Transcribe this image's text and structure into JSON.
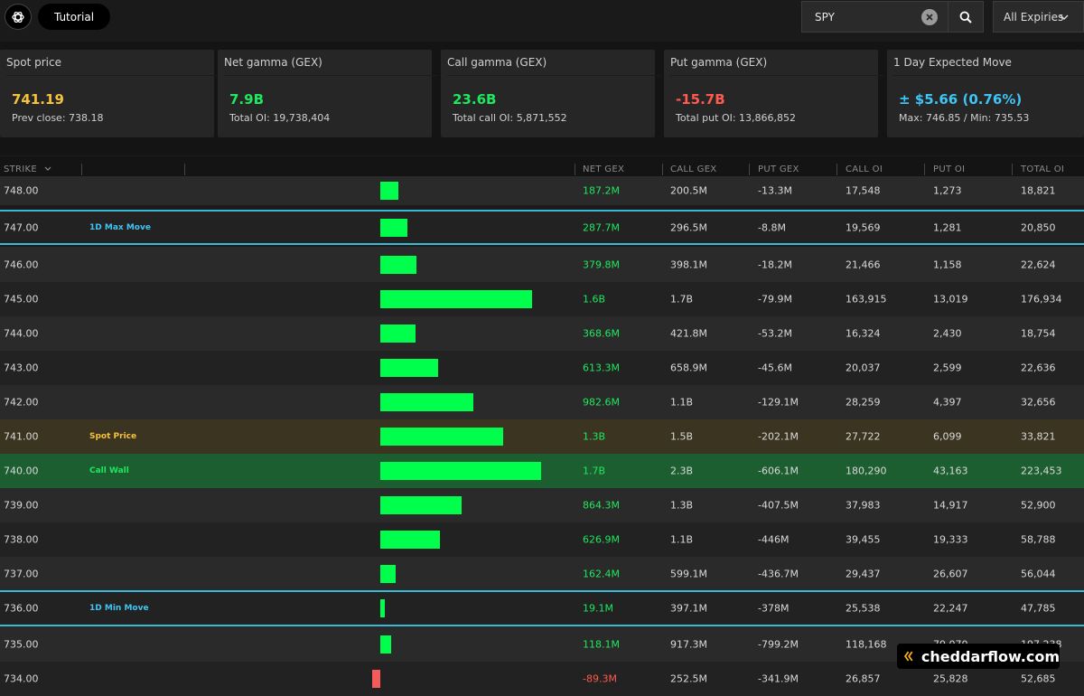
{
  "header": {
    "tutorial_label": "Tutorial",
    "search_value": "SPY",
    "expiry_label": "All Expiries"
  },
  "cards": [
    {
      "label": "Spot price",
      "value": "741.19",
      "sub": "Prev close: 738.18",
      "color": "#f5c23a"
    },
    {
      "label": "Net gamma (GEX)",
      "value": "7.9B",
      "sub": "Total OI: 19,738,404",
      "color": "#1ee85e"
    },
    {
      "label": "Call gamma (GEX)",
      "value": "23.6B",
      "sub": "Total call OI: 5,871,552",
      "color": "#1ee85e"
    },
    {
      "label": "Put gamma (GEX)",
      "value": "-15.7B",
      "sub": "Total put OI: 13,866,852",
      "color": "#ff5a4e"
    },
    {
      "label": "1 Day Expected Move",
      "value": "± $5.66 (0.76%)",
      "sub": "Max: 746.85 / Min: 735.53",
      "color": "#3fc4f5"
    }
  ],
  "table": {
    "headers": {
      "strike": "STRIKE",
      "net_gex": "NET GEX",
      "call_gex": "CALL GEX",
      "put_gex": "PUT GEX",
      "call_oi": "CALL OI",
      "put_oi": "PUT OI",
      "total_oi": "TOTAL OI"
    },
    "rows": [
      {
        "strike": "748.00",
        "tag": "",
        "net": "187.2M",
        "net_value": 187.2,
        "call_gex": "200.5M",
        "put_gex": "-13.3M",
        "call_oi": "17,548",
        "put_oi": "1,273",
        "total_oi": "18,821"
      },
      {
        "strike": "747.00",
        "tag": "1D Max Move",
        "net": "287.7M",
        "net_value": 287.7,
        "call_gex": "296.5M",
        "put_gex": "-8.8M",
        "call_oi": "19,569",
        "put_oi": "1,281",
        "total_oi": "20,850"
      },
      {
        "strike": "746.00",
        "tag": "",
        "net": "379.8M",
        "net_value": 379.8,
        "call_gex": "398.1M",
        "put_gex": "-18.2M",
        "call_oi": "21,466",
        "put_oi": "1,158",
        "total_oi": "22,624"
      },
      {
        "strike": "745.00",
        "tag": "",
        "net": "1.6B",
        "net_value": 1600,
        "call_gex": "1.7B",
        "put_gex": "-79.9M",
        "call_oi": "163,915",
        "put_oi": "13,019",
        "total_oi": "176,934"
      },
      {
        "strike": "744.00",
        "tag": "",
        "net": "368.6M",
        "net_value": 368.6,
        "call_gex": "421.8M",
        "put_gex": "-53.2M",
        "call_oi": "16,324",
        "put_oi": "2,430",
        "total_oi": "18,754"
      },
      {
        "strike": "743.00",
        "tag": "",
        "net": "613.3M",
        "net_value": 613.3,
        "call_gex": "658.9M",
        "put_gex": "-45.6M",
        "call_oi": "20,037",
        "put_oi": "2,599",
        "total_oi": "22,636"
      },
      {
        "strike": "742.00",
        "tag": "",
        "net": "982.6M",
        "net_value": 982.6,
        "call_gex": "1.1B",
        "put_gex": "-129.1M",
        "call_oi": "28,259",
        "put_oi": "4,397",
        "total_oi": "32,656"
      },
      {
        "strike": "741.00",
        "tag": "Spot Price",
        "net": "1.3B",
        "net_value": 1300,
        "call_gex": "1.5B",
        "put_gex": "-202.1M",
        "call_oi": "27,722",
        "put_oi": "6,099",
        "total_oi": "33,821"
      },
      {
        "strike": "740.00",
        "tag": "Call Wall",
        "net": "1.7B",
        "net_value": 1700,
        "call_gex": "2.3B",
        "put_gex": "-606.1M",
        "call_oi": "180,290",
        "put_oi": "43,163",
        "total_oi": "223,453"
      },
      {
        "strike": "739.00",
        "tag": "",
        "net": "864.3M",
        "net_value": 864.3,
        "call_gex": "1.3B",
        "put_gex": "-407.5M",
        "call_oi": "37,983",
        "put_oi": "14,917",
        "total_oi": "52,900"
      },
      {
        "strike": "738.00",
        "tag": "",
        "net": "626.9M",
        "net_value": 626.9,
        "call_gex": "1.1B",
        "put_gex": "-446M",
        "call_oi": "39,455",
        "put_oi": "19,333",
        "total_oi": "58,788"
      },
      {
        "strike": "737.00",
        "tag": "",
        "net": "162.4M",
        "net_value": 162.4,
        "call_gex": "599.1M",
        "put_gex": "-436.7M",
        "call_oi": "29,437",
        "put_oi": "26,607",
        "total_oi": "56,044"
      },
      {
        "strike": "736.00",
        "tag": "1D Min Move",
        "net": "19.1M",
        "net_value": 19.1,
        "call_gex": "397.1M",
        "put_gex": "-378M",
        "call_oi": "25,538",
        "put_oi": "22,247",
        "total_oi": "47,785"
      },
      {
        "strike": "735.00",
        "tag": "",
        "net": "118.1M",
        "net_value": 118.1,
        "call_gex": "917.3M",
        "put_gex": "-799.2M",
        "call_oi": "118,168",
        "put_oi": "79,070",
        "total_oi": "197,238"
      },
      {
        "strike": "734.00",
        "tag": "",
        "net": "-89.3M",
        "net_value": -89.3,
        "call_gex": "252.5M",
        "put_gex": "-341.9M",
        "call_oi": "26,857",
        "put_oi": "25,828",
        "total_oi": "52,685"
      }
    ]
  },
  "colors": {
    "positive_bar": "#00ff4c",
    "negative_bar": "#f45b5b",
    "spot_tag": "#f5c23a",
    "wall_tag": "#1ee85e",
    "move_tag": "#3fc4f5"
  },
  "watermark": "cheddarflow.com"
}
